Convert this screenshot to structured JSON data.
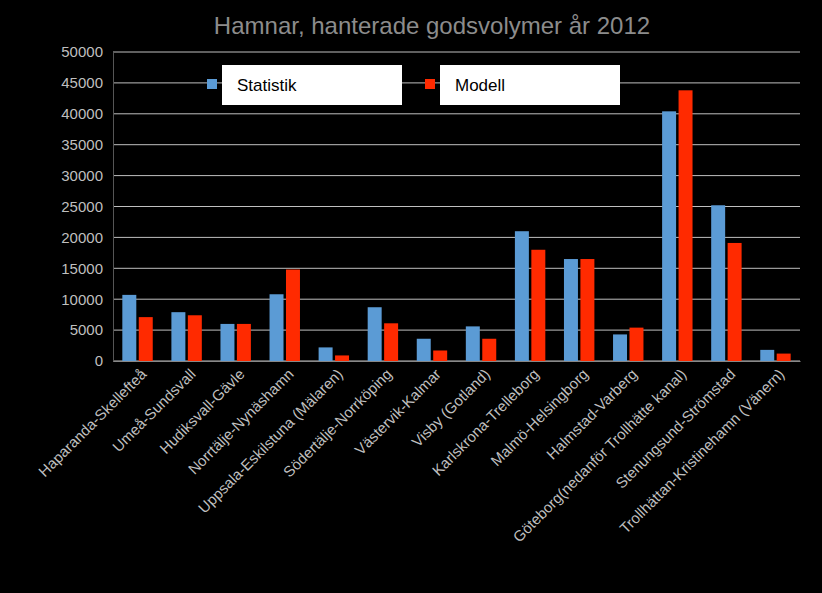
{
  "chart_data": {
    "type": "bar",
    "title": "Hamnar, hanterade godsvolymer år 2012",
    "categories": [
      "Haparanda-Skellefteå",
      "Umeå-Sundsvall",
      "Hudiksvall-Gävle",
      "Norrtälje-Nynäshamn",
      "Uppsala-Eskilstuna (Mälaren)",
      "Södertälje-Norrköping",
      "Västervik-Kalmar",
      "Visby (Gotland)",
      "Karlskrona-Trelleborg",
      "Malmö-Helsingborg",
      "Halmstad-Varberg",
      "Göteborg(nedanför Trollhätte kanal)",
      "Stenungsund-Strömstad",
      "Trollhättan-Kristinehamn (Vänern)"
    ],
    "series": [
      {
        "name": "Statistik",
        "color": "#5b9bd5",
        "values": [
          10700,
          7900,
          6000,
          10800,
          2200,
          8700,
          3600,
          5600,
          21000,
          16500,
          4300,
          40400,
          25200,
          1800
        ]
      },
      {
        "name": "Modell",
        "color": "#ff2a00",
        "values": [
          7100,
          7400,
          6000,
          14800,
          900,
          6100,
          1700,
          3600,
          18000,
          16500,
          5400,
          43800,
          19100,
          1200
        ]
      }
    ],
    "ylim": [
      0,
      50000
    ],
    "yticks": [
      0,
      5000,
      10000,
      15000,
      20000,
      25000,
      30000,
      35000,
      40000,
      45000,
      50000
    ],
    "grid": true,
    "legend": "top"
  }
}
